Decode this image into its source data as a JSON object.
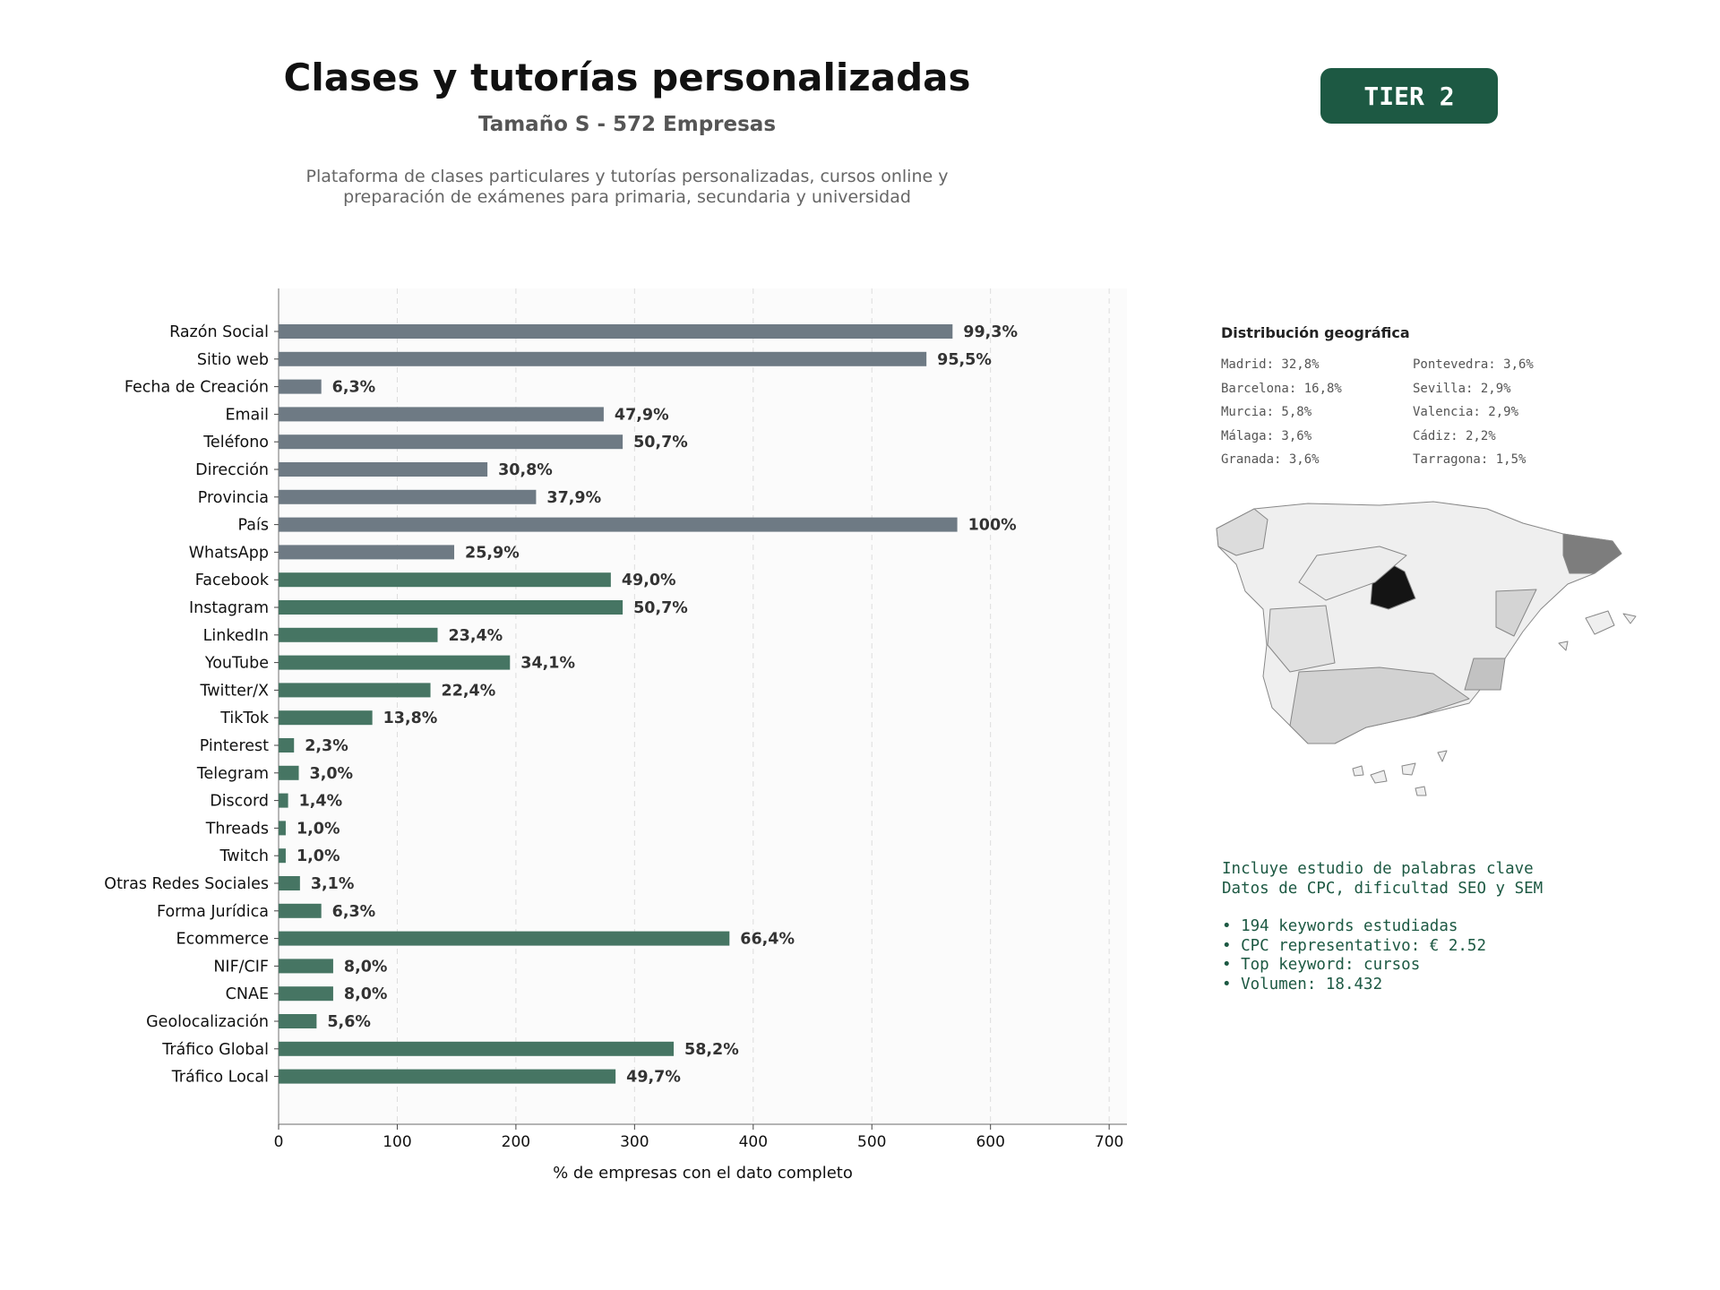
{
  "header": {
    "title": "Clases y tutorías personalizadas",
    "subtitle": "Tamaño S - 572 Empresas",
    "description": "Plataforma de clases particulares y tutorías personalizadas, cursos online y preparación de exámenes para primaria, secundaria y universidad",
    "tier": "TIER 2"
  },
  "colors": {
    "accent": "#1d5943",
    "bar_basic": "#6e7a84",
    "bar_digital": "#467563"
  },
  "chart_data": {
    "type": "bar",
    "orientation": "horizontal",
    "xlabel": "% de empresas con el dato completo",
    "xlim": [
      0,
      715
    ],
    "xticks": [
      0,
      100,
      200,
      300,
      400,
      500,
      600,
      700
    ],
    "grid": "vertical dashed",
    "categories": [
      "Razón Social",
      "Sitio web",
      "Fecha de Creación",
      "Email",
      "Teléfono",
      "Dirección",
      "Provincia",
      "País",
      "WhatsApp",
      "Facebook",
      "Instagram",
      "LinkedIn",
      "YouTube",
      "Twitter/X",
      "TikTok",
      "Pinterest",
      "Telegram",
      "Discord",
      "Threads",
      "Twitch",
      "Otras Redes Sociales",
      "Forma Jurídica",
      "Ecommerce",
      "NIF/CIF",
      "CNAE",
      "Geolocalización",
      "Tráfico Global",
      "Tráfico Local"
    ],
    "values": [
      568,
      546,
      36,
      274,
      290,
      176,
      217,
      572,
      148,
      280,
      290,
      134,
      195,
      128,
      79,
      13,
      17,
      8,
      6,
      6,
      18,
      36,
      380,
      46,
      46,
      32,
      333,
      284
    ],
    "labels": [
      "99,3%",
      "95,5%",
      "6,3%",
      "47,9%",
      "50,7%",
      "30,8%",
      "37,9%",
      "100%",
      "25,9%",
      "49,0%",
      "50,7%",
      "23,4%",
      "34,1%",
      "22,4%",
      "13,8%",
      "2,3%",
      "3,0%",
      "1,4%",
      "1,0%",
      "1,0%",
      "3,1%",
      "6,3%",
      "66,4%",
      "8,0%",
      "8,0%",
      "5,6%",
      "58,2%",
      "49,7%"
    ],
    "groups": [
      "basic",
      "basic",
      "basic",
      "basic",
      "basic",
      "basic",
      "basic",
      "basic",
      "basic",
      "digital",
      "digital",
      "digital",
      "digital",
      "digital",
      "digital",
      "digital",
      "digital",
      "digital",
      "digital",
      "digital",
      "digital",
      "digital",
      "digital",
      "digital",
      "digital",
      "digital",
      "digital",
      "digital"
    ]
  },
  "geo": {
    "title": "Distribución geográfica",
    "col1": [
      "Madrid: 32,8%",
      "Barcelona: 16,8%",
      "Murcia: 5,8%",
      "Málaga: 3,6%",
      "Granada: 3,6%"
    ],
    "col2": [
      "Pontevedra: 3,6%",
      "Sevilla: 2,9%",
      "Valencia: 2,9%",
      "Cádiz: 2,2%",
      "Tarragona: 1,5%"
    ]
  },
  "keywords": {
    "line1": "Incluye estudio de palabras clave",
    "line2": "Datos de CPC, dificultad SEO y SEM",
    "bullets": [
      "• 194 keywords estudiadas",
      "• CPC representativo: € 2.52",
      "• Top keyword: cursos",
      "• Volumen: 18.432"
    ]
  }
}
